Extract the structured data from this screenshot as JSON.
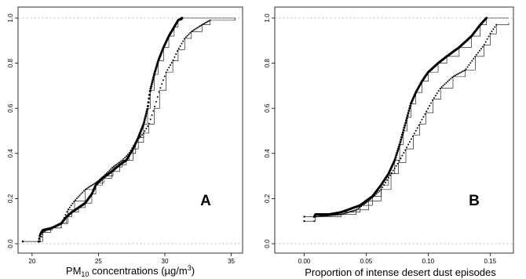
{
  "chart_data": [
    {
      "type": "ecdf",
      "panel_label": "A",
      "xlabel": "PM10 concentrations (µg/m3)",
      "xlabel_parts": {
        "pre": "PM",
        "sub": "10",
        "mid": " concentrations (µg/m",
        "sup": "3",
        "post": ")"
      },
      "xlim": [
        19.3,
        35.5
      ],
      "ylim": [
        0,
        1
      ],
      "x_ticks": [
        20,
        25,
        30,
        35
      ],
      "x_tick_labels": [
        "20",
        "25",
        "30",
        "35"
      ],
      "y_ticks": [
        0.0,
        0.2,
        0.4,
        0.6,
        0.8,
        1.0
      ],
      "y_tick_labels": [
        "0.0",
        "0.2",
        "0.4",
        "0.6",
        "0.8",
        "1.0"
      ],
      "reference_lines": [
        0,
        1
      ],
      "series": [
        {
          "style": "dense",
          "points": [
            [
              19.3,
              0.01
            ],
            [
              20.5,
              0.01
            ],
            [
              20.6,
              0.04
            ],
            [
              20.8,
              0.06
            ],
            [
              21.5,
              0.07
            ],
            [
              22.2,
              0.09
            ],
            [
              22.6,
              0.12
            ],
            [
              23.0,
              0.14
            ],
            [
              23.5,
              0.16
            ],
            [
              24.0,
              0.18
            ],
            [
              24.5,
              0.22
            ],
            [
              24.8,
              0.26
            ],
            [
              25.3,
              0.29
            ],
            [
              26.0,
              0.32
            ],
            [
              26.6,
              0.35
            ],
            [
              27.1,
              0.37
            ],
            [
              27.6,
              0.42
            ],
            [
              28.0,
              0.47
            ],
            [
              28.4,
              0.53
            ],
            [
              28.7,
              0.6
            ],
            [
              28.9,
              0.68
            ],
            [
              29.2,
              0.75
            ],
            [
              29.5,
              0.81
            ],
            [
              29.9,
              0.87
            ],
            [
              30.3,
              0.92
            ],
            [
              30.7,
              0.96
            ],
            [
              31.0,
              0.99
            ],
            [
              31.3,
              1.0
            ],
            [
              35.3,
              1.0
            ]
          ]
        },
        {
          "style": "sparse",
          "points": [
            [
              19.3,
              0.01
            ],
            [
              20.6,
              0.01
            ],
            [
              20.8,
              0.05
            ],
            [
              21.4,
              0.07
            ],
            [
              22.2,
              0.09
            ],
            [
              22.7,
              0.15
            ],
            [
              23.2,
              0.19
            ],
            [
              24.0,
              0.24
            ],
            [
              24.8,
              0.27
            ],
            [
              25.4,
              0.3
            ],
            [
              26.1,
              0.34
            ],
            [
              26.8,
              0.37
            ],
            [
              27.3,
              0.4
            ],
            [
              27.8,
              0.45
            ],
            [
              28.4,
              0.49
            ],
            [
              28.8,
              0.53
            ],
            [
              29.2,
              0.6
            ],
            [
              29.6,
              0.68
            ],
            [
              30.1,
              0.76
            ],
            [
              30.6,
              0.81
            ],
            [
              31.0,
              0.86
            ],
            [
              31.5,
              0.91
            ],
            [
              32.0,
              0.94
            ],
            [
              32.8,
              0.97
            ],
            [
              33.4,
              0.99
            ],
            [
              35.3,
              1.0
            ]
          ]
        }
      ]
    },
    {
      "type": "ecdf",
      "panel_label": "B",
      "xlabel": "Proportion of intense desert dust episodes",
      "xlim": [
        -0.02,
        0.165
      ],
      "ylim": [
        0,
        1
      ],
      "x_ticks": [
        0.0,
        0.05,
        0.1,
        0.15
      ],
      "x_tick_labels": [
        "0.00",
        "0.05",
        "0.10",
        "0.15"
      ],
      "y_ticks": [
        0.0,
        0.2,
        0.4,
        0.6,
        0.8,
        1.0
      ],
      "y_tick_labels": [
        "0.0",
        "0.2",
        "0.4",
        "0.6",
        "0.8",
        "1.0"
      ],
      "reference_lines": [
        0,
        1
      ],
      "series": [
        {
          "style": "dense",
          "points": [
            [
              0.0,
              0.12
            ],
            [
              0.008,
              0.12
            ],
            [
              0.009,
              0.13
            ],
            [
              0.02,
              0.13
            ],
            [
              0.03,
              0.14
            ],
            [
              0.045,
              0.17
            ],
            [
              0.055,
              0.21
            ],
            [
              0.062,
              0.26
            ],
            [
              0.068,
              0.31
            ],
            [
              0.073,
              0.37
            ],
            [
              0.077,
              0.44
            ],
            [
              0.08,
              0.5
            ],
            [
              0.083,
              0.56
            ],
            [
              0.086,
              0.62
            ],
            [
              0.09,
              0.67
            ],
            [
              0.095,
              0.72
            ],
            [
              0.1,
              0.76
            ],
            [
              0.108,
              0.8
            ],
            [
              0.115,
              0.83
            ],
            [
              0.125,
              0.87
            ],
            [
              0.135,
              0.92
            ],
            [
              0.142,
              0.97
            ],
            [
              0.147,
              1.0
            ],
            [
              0.165,
              1.0
            ]
          ]
        },
        {
          "style": "sparse",
          "points": [
            [
              0.0,
              0.1
            ],
            [
              0.008,
              0.1
            ],
            [
              0.009,
              0.12
            ],
            [
              0.03,
              0.13
            ],
            [
              0.042,
              0.15
            ],
            [
              0.052,
              0.19
            ],
            [
              0.062,
              0.24
            ],
            [
              0.07,
              0.31
            ],
            [
              0.076,
              0.36
            ],
            [
              0.082,
              0.42
            ],
            [
              0.088,
              0.48
            ],
            [
              0.093,
              0.53
            ],
            [
              0.098,
              0.58
            ],
            [
              0.104,
              0.64
            ],
            [
              0.11,
              0.69
            ],
            [
              0.12,
              0.74
            ],
            [
              0.13,
              0.77
            ],
            [
              0.138,
              0.83
            ],
            [
              0.145,
              0.88
            ],
            [
              0.15,
              0.93
            ],
            [
              0.155,
              0.97
            ],
            [
              0.165,
              0.98
            ]
          ]
        }
      ]
    }
  ]
}
